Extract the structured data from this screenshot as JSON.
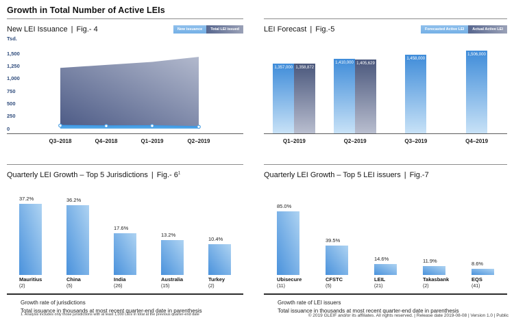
{
  "page": {
    "title": "Growth in Total Number of Active LEIs",
    "header_sep": "|",
    "footnote": "1. Analysis includes only those jurisdictions with at least 1,000 LEIs in total at the previous quarter-end date",
    "copyright": "© 2019 GLEIF and/or its affiliates. All rights reserved.  |  Release date 2019-08-08  |  Version 1.0  |  Public"
  },
  "colors": {
    "light_blue": "#7fb6e8",
    "dark_slate": "#57668e",
    "bar_blue_dark": "#4a92dc",
    "bar_blue_light": "#aed3f2",
    "axis_label_navy": "#2f4c7c",
    "issuance_line_blue": "#3e9be8"
  },
  "chart_data": [
    {
      "id": "fig4",
      "type": "area",
      "title": "New LEI Issuance",
      "fig": "Fig.- 4",
      "unit": "Tsd.",
      "ylim": [
        0,
        1500
      ],
      "y_ticks": [
        1500,
        1250,
        1000,
        750,
        500,
        250,
        0
      ],
      "y_tick_labels": [
        "1,500",
        "1,250",
        "1,000",
        "750",
        "500",
        "250",
        "0"
      ],
      "categories": [
        "Q3–2018",
        "Q4–2018",
        "Q1–2019",
        "Q2–2019"
      ],
      "series": [
        {
          "name": "New issuance",
          "values": [
            60,
            52,
            55,
            35
          ]
        },
        {
          "name": "Total LEI issued",
          "values": [
            1210,
            1270,
            1330,
            1430
          ]
        }
      ],
      "legend_position": "top-right",
      "grid": false
    },
    {
      "id": "fig5",
      "type": "bar",
      "title": "LEI Forecast",
      "fig": "Fig.-5",
      "categories": [
        "Q1–2019",
        "Q2–2019",
        "Q3–2019",
        "Q4–2019"
      ],
      "series": [
        {
          "name": "Forecasted Active LEI",
          "values": [
            1357000,
            1410000,
            1458000,
            1506000
          ],
          "labels": [
            "1,357,000",
            "1,410,000",
            "1,458,000",
            "1,506,000"
          ]
        },
        {
          "name": "Actual Active LEI",
          "values": [
            1358872,
            1405629,
            null,
            null
          ],
          "labels": [
            "1,358,872",
            "1,405,629",
            null,
            null
          ]
        }
      ],
      "legend_position": "top-right",
      "grid": false
    },
    {
      "id": "fig6",
      "type": "bar",
      "title": "Quarterly LEI Growth – Top 5 Jurisdictions",
      "fig": "Fig.- 6",
      "fig_sup": "1",
      "categories": [
        "Mauritius",
        "China",
        "India",
        "Australia",
        "Turkey"
      ],
      "counts": [
        "(2)",
        "(5)",
        "(26)",
        "(15)",
        "(2)"
      ],
      "values": [
        37.2,
        36.2,
        17.6,
        13.2,
        10.4
      ],
      "labels": [
        "37.2%",
        "36.2%",
        "17.6%",
        "13.2%",
        "10.4%"
      ],
      "notes": [
        "Growth rate of jurisdictions",
        "Total issuance in thousands at most recent quarter-end date in parenthesis"
      ],
      "grid": false
    },
    {
      "id": "fig7",
      "type": "bar",
      "title": "Quarterly LEI Growth – Top 5 LEI issuers",
      "fig": "Fig.-7",
      "categories": [
        "Ubisecure",
        "CFSTC",
        "LEIL",
        "Takasbank",
        "EQS"
      ],
      "counts": [
        "(11)",
        "(5)",
        "(21)",
        "(2)",
        "(41)"
      ],
      "values": [
        85.0,
        39.5,
        14.6,
        11.9,
        8.6
      ],
      "labels": [
        "85.0%",
        "39.5%",
        "14.6%",
        "11.9%",
        "8.6%"
      ],
      "notes": [
        "Growth rate of LEI issuers",
        "Total issuance in thousands at most recent quarter-end date in parenthesis"
      ],
      "grid": false
    }
  ]
}
